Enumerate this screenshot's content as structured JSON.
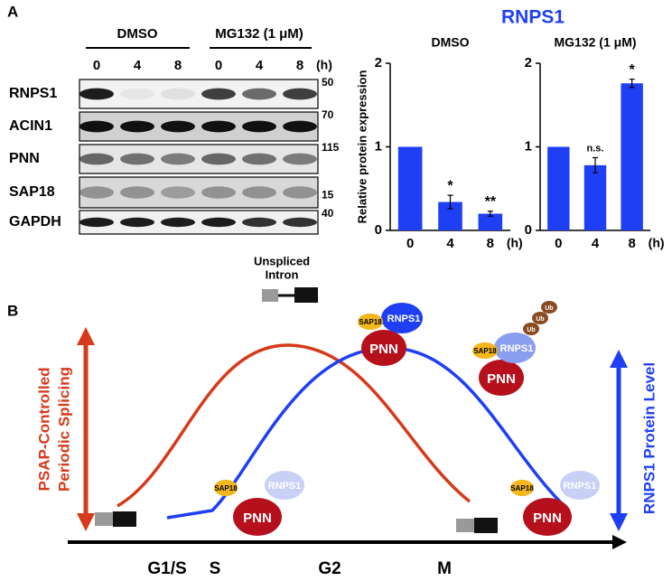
{
  "panel_labels": [
    "A",
    "B"
  ],
  "blot": {
    "conditions": [
      "DMSO",
      "MG132 (1 μM)"
    ],
    "timepoints": [
      "0",
      "4",
      "8",
      "0",
      "4",
      "8"
    ],
    "time_unit": "(h)",
    "proteins": [
      "RNPS1",
      "ACIN1",
      "PNN",
      "SAP18",
      "GAPDH"
    ],
    "markers": [
      "50",
      "70",
      "115",
      "15",
      "40"
    ]
  },
  "charts_title": "RNPS1",
  "chart_data": [
    {
      "type": "bar",
      "title": "DMSO",
      "y_label": "Relative protein expression",
      "categories": [
        "0",
        "4",
        "8"
      ],
      "x_unit": "(h)",
      "values": [
        1,
        0.34,
        0.2
      ],
      "errors": [
        0,
        0.08,
        0.03
      ],
      "annotations": [
        null,
        "*",
        "**"
      ],
      "color": "#1f3ff5",
      "ylim": [
        0,
        2
      ],
      "yticks": [
        0,
        1,
        2
      ]
    },
    {
      "type": "bar",
      "title": "MG132 (1 μM)",
      "categories": [
        "0",
        "4",
        "8"
      ],
      "x_unit": "(h)",
      "values": [
        1,
        0.78,
        1.76
      ],
      "errors": [
        0,
        0.09,
        0.05
      ],
      "annotations": [
        null,
        "n.s.",
        "*"
      ],
      "color": "#1f3ff5",
      "ylim": [
        0,
        2
      ],
      "yticks": [
        0,
        1,
        2
      ]
    }
  ],
  "diagram": {
    "phases": [
      "G1/S",
      "S",
      "G2",
      "M"
    ],
    "left_label": [
      "PSAP-Controlled",
      "Periodic Splicing"
    ],
    "right_label": "RNPS1 Protein Level",
    "intron_label": [
      "Unspliced",
      "Intron"
    ],
    "complexes": [
      {
        "sap": "SAP18",
        "rnps": "RNPS1",
        "pnn": "PNN"
      },
      {
        "sap": "SAP18",
        "rnps": "RNPS1",
        "pnn": "PNN",
        "ub": [
          "Ub",
          "Ub",
          "Ub"
        ]
      },
      {
        "sap": "SAP18",
        "rnps": "RNPS1",
        "pnn": "PNN"
      },
      {
        "sap": "SAP18",
        "rnps": "RNPS1",
        "pnn": "PNN"
      }
    ]
  }
}
